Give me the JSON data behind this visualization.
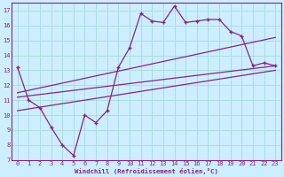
{
  "bg_color": "#cceeff",
  "grid_color": "#aadddd",
  "line_color": "#882288",
  "xlabel": "Windchill (Refroidissement éolien,°C)",
  "xlim": [
    -0.5,
    23.5
  ],
  "ylim": [
    7,
    17.5
  ],
  "yticks": [
    7,
    8,
    9,
    10,
    11,
    12,
    13,
    14,
    15,
    16,
    17
  ],
  "xticks": [
    0,
    1,
    2,
    3,
    4,
    5,
    6,
    7,
    8,
    9,
    10,
    11,
    12,
    13,
    14,
    15,
    16,
    17,
    18,
    19,
    20,
    21,
    22,
    23
  ],
  "main_x": [
    0,
    1,
    2,
    3,
    4,
    5,
    6,
    7,
    8,
    9,
    10,
    11,
    12,
    13,
    14,
    15,
    16,
    17,
    18,
    19,
    20,
    21,
    22,
    23
  ],
  "main_y": [
    13.2,
    11.0,
    10.5,
    9.2,
    8.0,
    7.3,
    10.0,
    9.5,
    10.3,
    13.2,
    14.5,
    16.8,
    16.3,
    16.2,
    17.3,
    16.2,
    16.3,
    16.4,
    16.4,
    15.6,
    15.3,
    13.3,
    13.5,
    13.3
  ],
  "tline1_x": [
    0,
    23
  ],
  "tline1_y": [
    11.5,
    15.2
  ],
  "tline2_x": [
    0,
    23
  ],
  "tline2_y": [
    11.2,
    13.3
  ],
  "tline3_x": [
    0,
    23
  ],
  "tline3_y": [
    10.3,
    13.0
  ]
}
